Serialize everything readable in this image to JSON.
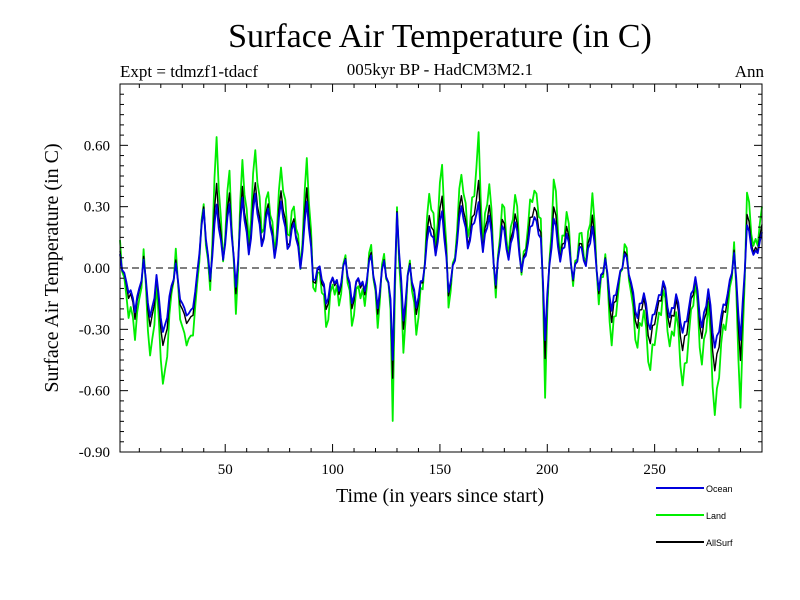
{
  "chart_data": {
    "type": "line",
    "title": "Surface Air Temperature (in C)",
    "subtitle": "005kyr BP - HadCM3M2.1",
    "experiment_label": "Expt = tdmzf1-tdacf",
    "season_label": "Ann",
    "xlabel": "Time (in years since start)",
    "ylabel": "Surface Air Temperature (in C)",
    "xlim": [
      1,
      300
    ],
    "ylim": [
      -0.9,
      0.9
    ],
    "xticks": [
      50,
      100,
      150,
      200,
      250
    ],
    "xtick_labels": [
      "50",
      "100",
      "150",
      "200",
      "250"
    ],
    "yticks": [
      -0.9,
      -0.6,
      -0.3,
      0.0,
      0.3,
      0.6
    ],
    "ytick_labels": [
      "-0.90",
      "-0.60",
      "-0.30",
      "0.00",
      "0.30",
      "0.60"
    ],
    "zero_line": true,
    "legend_position": "bottom-right",
    "series": [
      {
        "name": "Land",
        "color": "#00ee00",
        "anchors_x": [
          1,
          5,
          8,
          12,
          15,
          18,
          21,
          24,
          27,
          30,
          33,
          36,
          40,
          43,
          46,
          49,
          52,
          55,
          58,
          61,
          64,
          67,
          70,
          73,
          76,
          79,
          82,
          85,
          88,
          91,
          94,
          97,
          100,
          103,
          106,
          109,
          112,
          115,
          118,
          121,
          124,
          127,
          128,
          130,
          133,
          136,
          139,
          142,
          145,
          148,
          151,
          154,
          157,
          160,
          163,
          166,
          168,
          170,
          173,
          176,
          179,
          182,
          185,
          188,
          191,
          194,
          197,
          199,
          200,
          203,
          206,
          209,
          212,
          215,
          218,
          221,
          224,
          227,
          230,
          233,
          236,
          239,
          242,
          245,
          248,
          251,
          254,
          257,
          260,
          263,
          266,
          269,
          272,
          275,
          278,
          281,
          284,
          287,
          290,
          293,
          296,
          300
        ],
        "anchors_y": [
          0.1,
          -0.2,
          -0.32,
          0.05,
          -0.45,
          -0.1,
          -0.6,
          -0.25,
          0.05,
          -0.3,
          -0.4,
          -0.2,
          0.3,
          -0.1,
          0.62,
          0.05,
          0.45,
          -0.2,
          0.5,
          0.15,
          0.55,
          0.2,
          0.35,
          0.1,
          0.48,
          0.18,
          0.3,
          0.0,
          0.55,
          -0.1,
          0.0,
          -0.3,
          -0.05,
          -0.2,
          0.1,
          -0.3,
          -0.05,
          -0.2,
          0.15,
          -0.3,
          0.1,
          -0.2,
          -0.75,
          0.32,
          -0.4,
          0.05,
          -0.3,
          -0.1,
          0.4,
          0.1,
          0.55,
          -0.2,
          0.1,
          0.45,
          0.2,
          0.35,
          0.62,
          0.15,
          0.4,
          -0.1,
          0.3,
          0.1,
          0.35,
          0.0,
          0.2,
          0.4,
          0.25,
          -0.63,
          -0.2,
          0.45,
          0.05,
          0.3,
          -0.1,
          0.2,
          0.0,
          0.4,
          -0.2,
          0.1,
          -0.4,
          -0.1,
          0.1,
          -0.1,
          -0.4,
          -0.2,
          -0.5,
          -0.3,
          -0.1,
          -0.4,
          -0.2,
          -0.6,
          -0.3,
          -0.1,
          -0.45,
          -0.2,
          -0.7,
          -0.4,
          -0.2,
          0.1,
          -0.68,
          0.35,
          0.1,
          0.25
        ]
      },
      {
        "name": "Ocean",
        "color": "#0000dd",
        "anchors_x": [
          1,
          5,
          8,
          12,
          15,
          18,
          21,
          24,
          27,
          30,
          33,
          36,
          40,
          43,
          46,
          49,
          52,
          55,
          58,
          61,
          64,
          67,
          70,
          73,
          76,
          79,
          82,
          85,
          88,
          91,
          94,
          97,
          100,
          103,
          106,
          109,
          112,
          115,
          118,
          121,
          124,
          127,
          128,
          130,
          133,
          136,
          139,
          142,
          145,
          148,
          151,
          154,
          157,
          160,
          163,
          166,
          168,
          170,
          173,
          176,
          179,
          182,
          185,
          188,
          191,
          194,
          197,
          199,
          200,
          203,
          206,
          209,
          212,
          215,
          218,
          221,
          224,
          227,
          230,
          233,
          236,
          239,
          242,
          245,
          248,
          251,
          254,
          257,
          260,
          263,
          266,
          269,
          272,
          275,
          278,
          281,
          284,
          287,
          290,
          293,
          296,
          300
        ],
        "anchors_y": [
          0.05,
          -0.1,
          -0.2,
          0.02,
          -0.25,
          -0.05,
          -0.33,
          -0.15,
          0.0,
          -0.18,
          -0.25,
          -0.12,
          0.28,
          -0.05,
          0.3,
          0.05,
          0.3,
          -0.08,
          0.33,
          0.08,
          0.35,
          0.12,
          0.28,
          0.06,
          0.32,
          0.1,
          0.22,
          0.0,
          0.33,
          -0.06,
          0.02,
          -0.18,
          -0.03,
          -0.12,
          0.06,
          -0.18,
          -0.03,
          -0.12,
          0.08,
          -0.2,
          0.05,
          -0.15,
          -0.45,
          0.28,
          -0.25,
          0.02,
          -0.18,
          -0.06,
          0.22,
          0.06,
          0.3,
          -0.12,
          0.06,
          0.3,
          0.12,
          0.22,
          0.3,
          0.1,
          0.25,
          -0.06,
          0.2,
          0.06,
          0.22,
          0.0,
          0.12,
          0.26,
          0.15,
          -0.35,
          -0.12,
          0.25,
          0.03,
          0.18,
          -0.06,
          0.12,
          0.0,
          0.22,
          -0.12,
          0.06,
          -0.22,
          -0.06,
          0.06,
          -0.06,
          -0.25,
          -0.12,
          -0.3,
          -0.18,
          -0.06,
          -0.25,
          -0.12,
          -0.33,
          -0.18,
          -0.06,
          -0.28,
          -0.12,
          -0.38,
          -0.25,
          -0.12,
          0.06,
          -0.35,
          0.2,
          0.06,
          0.15
        ]
      },
      {
        "name": "AllSurf",
        "color": "#000000",
        "anchors_x": [
          1,
          5,
          8,
          12,
          15,
          18,
          21,
          24,
          27,
          30,
          33,
          36,
          40,
          43,
          46,
          49,
          52,
          55,
          58,
          61,
          64,
          67,
          70,
          73,
          76,
          79,
          82,
          85,
          88,
          91,
          94,
          97,
          100,
          103,
          106,
          109,
          112,
          115,
          118,
          121,
          124,
          127,
          128,
          130,
          133,
          136,
          139,
          142,
          145,
          148,
          151,
          154,
          157,
          160,
          163,
          166,
          168,
          170,
          173,
          176,
          179,
          182,
          185,
          188,
          191,
          194,
          197,
          199,
          200,
          203,
          206,
          209,
          212,
          215,
          218,
          221,
          224,
          227,
          230,
          233,
          236,
          239,
          242,
          245,
          248,
          251,
          254,
          257,
          260,
          263,
          266,
          269,
          272,
          275,
          278,
          281,
          284,
          287,
          290,
          293,
          296,
          300
        ],
        "anchors_y": [
          0.06,
          -0.12,
          -0.23,
          0.03,
          -0.3,
          -0.06,
          -0.4,
          -0.18,
          0.01,
          -0.21,
          -0.29,
          -0.14,
          0.29,
          -0.06,
          0.4,
          0.05,
          0.35,
          -0.11,
          0.38,
          0.1,
          0.4,
          0.14,
          0.3,
          0.07,
          0.37,
          0.12,
          0.24,
          0.0,
          0.4,
          -0.07,
          0.01,
          -0.21,
          -0.03,
          -0.14,
          0.07,
          -0.21,
          -0.03,
          -0.14,
          0.1,
          -0.23,
          0.06,
          -0.16,
          -0.54,
          0.29,
          -0.29,
          0.03,
          -0.21,
          -0.07,
          0.28,
          0.07,
          0.38,
          -0.14,
          0.07,
          0.35,
          0.14,
          0.26,
          0.4,
          0.11,
          0.3,
          -0.07,
          0.23,
          0.07,
          0.26,
          0.0,
          0.15,
          0.31,
          0.18,
          -0.44,
          -0.14,
          0.31,
          0.04,
          0.22,
          -0.07,
          0.14,
          0.0,
          0.28,
          -0.14,
          0.07,
          -0.28,
          -0.07,
          0.07,
          -0.07,
          -0.3,
          -0.14,
          -0.37,
          -0.22,
          -0.07,
          -0.3,
          -0.14,
          -0.42,
          -0.22,
          -0.07,
          -0.33,
          -0.14,
          -0.49,
          -0.3,
          -0.14,
          0.07,
          -0.45,
          0.25,
          0.07,
          0.18
        ]
      }
    ]
  }
}
